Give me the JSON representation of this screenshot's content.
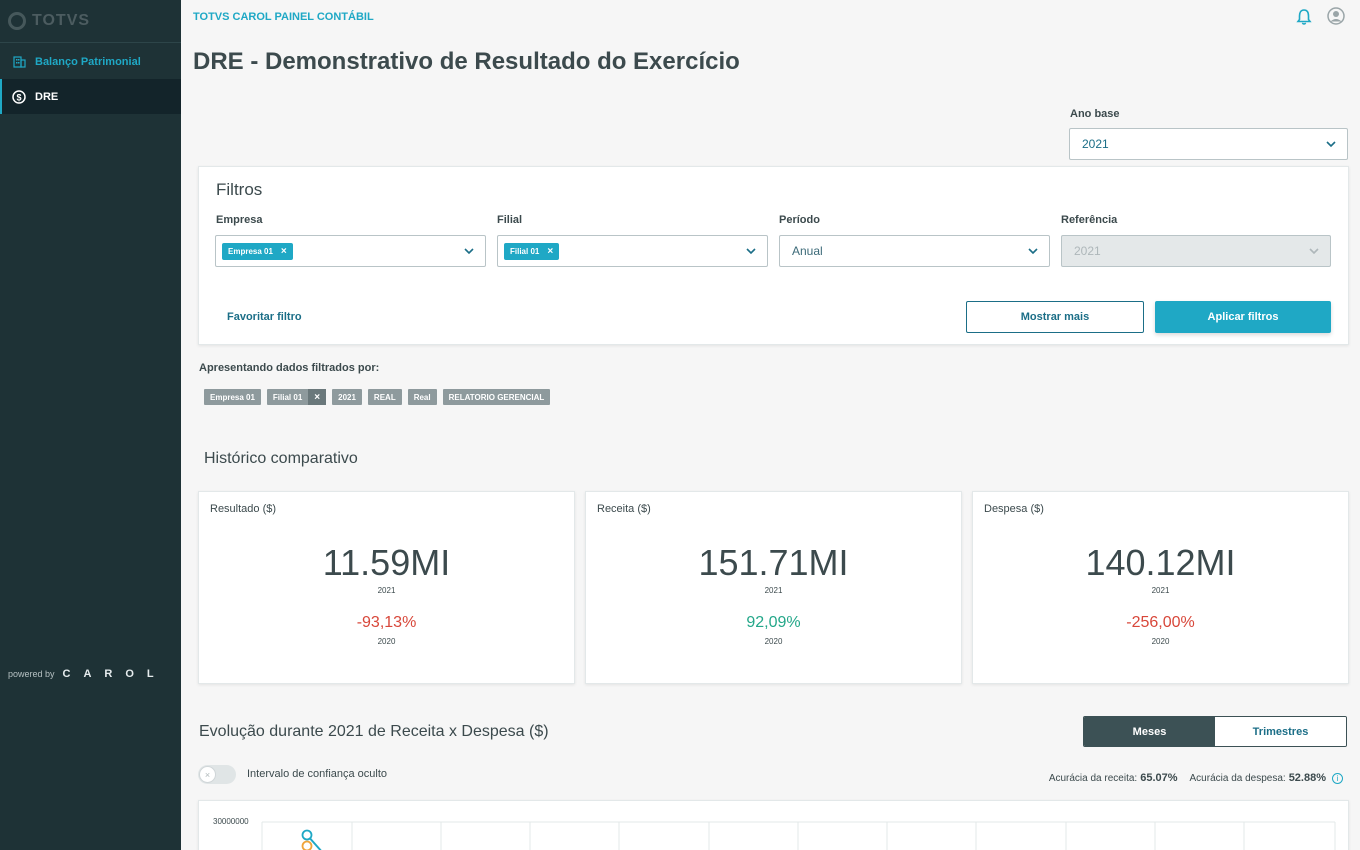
{
  "brand": {
    "logo_text": "TOTVS",
    "powered_by": "powered by",
    "carol": "CAROL"
  },
  "sidebar": {
    "items": [
      {
        "label": "Balanço Patrimonial"
      },
      {
        "label": "DRE"
      }
    ]
  },
  "header": {
    "app_name": "TOTVS CAROL PAINEL CONTÁBIL"
  },
  "page": {
    "title": "DRE - Demonstrativo de Resultado do Exercício"
  },
  "ano_base": {
    "label": "Ano base",
    "value": "2021"
  },
  "filters": {
    "title": "Filtros",
    "empresa": {
      "label": "Empresa",
      "chip": "Empresa 01"
    },
    "filial": {
      "label": "Filial",
      "chip": "Filial 01"
    },
    "periodo": {
      "label": "Período",
      "value": "Anual"
    },
    "referencia": {
      "label": "Referência",
      "value": "2021"
    },
    "favorite_link": "Favoritar filtro",
    "show_more": "Mostrar mais",
    "apply": "Aplicar filtros"
  },
  "applied": {
    "label": "Apresentando dados filtrados por:",
    "tags": [
      "Empresa 01",
      "Filial 01",
      "2021",
      "REAL",
      "Real",
      "RELATORIO GERENCIAL"
    ]
  },
  "historico": {
    "title": "Histórico comparativo",
    "cards": [
      {
        "label": "Resultado ($)",
        "value": "11.59MI",
        "year": "2021",
        "variation": "-93,13%",
        "prev_year": "2020"
      },
      {
        "label": "Receita ($)",
        "value": "151.71MI",
        "year": "2021",
        "variation": "92,09%",
        "prev_year": "2020"
      },
      {
        "label": "Despesa ($)",
        "value": "140.12MI",
        "year": "2021",
        "variation": "-256,00%",
        "prev_year": "2020"
      }
    ]
  },
  "evolucao": {
    "title": "Evolução durante 2021 de Receita x Despesa ($)",
    "toggle_months": "Meses",
    "toggle_quarters": "Trimestres",
    "confidence_label": "Intervalo de confiança oculto",
    "accuracy_revenue_label": "Acurácia da receita:",
    "accuracy_revenue_value": "65.07%",
    "accuracy_expense_label": "Acurácia da despesa:",
    "accuracy_expense_value": "52.88%",
    "y_top_tick": "30000000"
  },
  "colors": {
    "accent": "#1fa8c5",
    "sidebar": "#1e3236",
    "negative": "#d8473a",
    "positive": "#23a789"
  }
}
